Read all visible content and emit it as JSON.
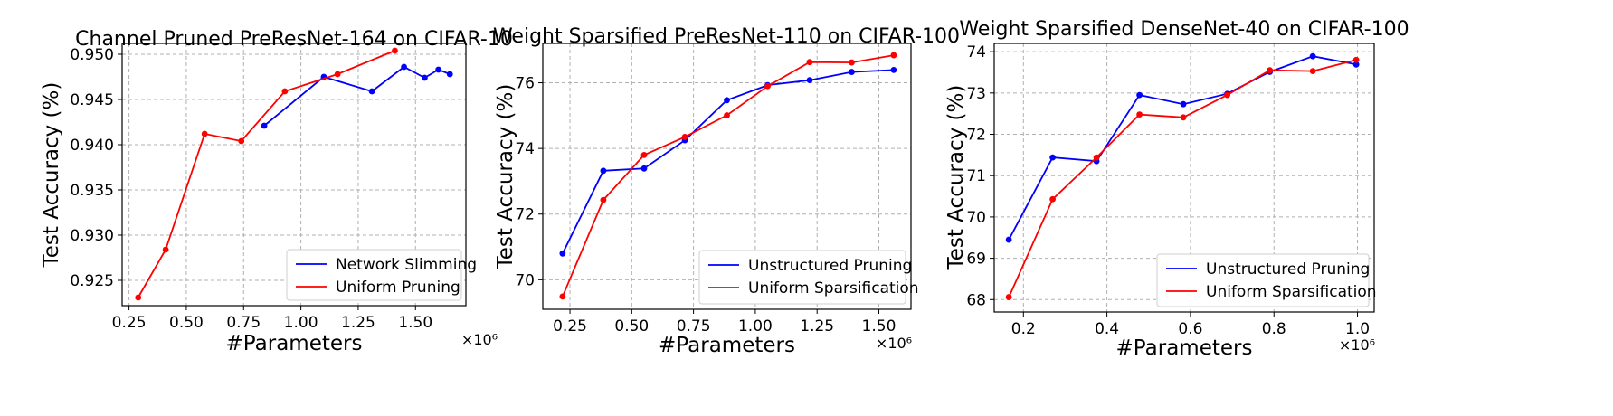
{
  "chart_data": [
    {
      "type": "line",
      "title": "Channel Pruned PreResNet-164 on CIFAR-10",
      "xlabel": "#Parameters",
      "ylabel": "Test Accuracy (%)",
      "x_multiplier": "×10⁶",
      "xlim": [
        0.22,
        1.72
      ],
      "ylim": [
        0.9222,
        0.9512
      ],
      "xticks": [
        0.25,
        0.5,
        0.75,
        1.0,
        1.25,
        1.5
      ],
      "xtick_labels": [
        "0.25",
        "0.50",
        "0.75",
        "1.00",
        "1.25",
        "1.50"
      ],
      "yticks": [
        0.925,
        0.93,
        0.935,
        0.94,
        0.945,
        0.95
      ],
      "ytick_labels": [
        "0.925",
        "0.930",
        "0.935",
        "0.940",
        "0.945",
        "0.950"
      ],
      "grid": true,
      "legend_position": "lower-right",
      "series": [
        {
          "name": "Network Slimming",
          "color": "#0000ff",
          "x": [
            0.84,
            1.1,
            1.31,
            1.45,
            1.54,
            1.6,
            1.65
          ],
          "y": [
            0.9421,
            0.9475,
            0.9459,
            0.9486,
            0.9474,
            0.9483,
            0.9478
          ]
        },
        {
          "name": "Uniform Pruning",
          "color": "#ff0000",
          "x": [
            0.29,
            0.41,
            0.58,
            0.74,
            0.93,
            1.16,
            1.41
          ],
          "y": [
            0.9231,
            0.9284,
            0.9412,
            0.9404,
            0.9459,
            0.9478,
            0.9504
          ]
        }
      ]
    },
    {
      "type": "line",
      "title": "Weight Sparsified PreResNet-110 on CIFAR-100",
      "xlabel": "#Parameters",
      "ylabel": "Test Accuracy (%)",
      "x_multiplier": "×10⁶",
      "xlim": [
        0.14,
        1.63
      ],
      "ylim": [
        69.1,
        77.2
      ],
      "xticks": [
        0.25,
        0.5,
        0.75,
        1.0,
        1.25,
        1.5
      ],
      "xtick_labels": [
        "0.25",
        "0.50",
        "0.75",
        "1.00",
        "1.25",
        "1.50"
      ],
      "yticks": [
        70,
        72,
        74,
        76
      ],
      "ytick_labels": [
        "70",
        "72",
        "74",
        "76"
      ],
      "grid": true,
      "legend_position": "lower-right",
      "series": [
        {
          "name": "Unstructured Pruning",
          "color": "#0000ff",
          "x": [
            0.22,
            0.385,
            0.55,
            0.715,
            0.885,
            1.05,
            1.22,
            1.39,
            1.56
          ],
          "y": [
            70.8,
            73.32,
            73.39,
            74.25,
            75.47,
            75.93,
            76.08,
            76.33,
            76.39
          ]
        },
        {
          "name": "Uniform Sparsification",
          "color": "#ff0000",
          "x": [
            0.22,
            0.385,
            0.55,
            0.715,
            0.885,
            1.05,
            1.22,
            1.39,
            1.56
          ],
          "y": [
            69.49,
            72.43,
            73.8,
            74.35,
            75.01,
            75.9,
            76.63,
            76.62,
            76.84
          ]
        }
      ]
    },
    {
      "type": "line",
      "title": "Weight Sparsified DenseNet-40 on CIFAR-100",
      "xlabel": "#Parameters",
      "ylabel": "Test Accuracy (%)",
      "x_multiplier": "×10⁶",
      "xlim": [
        0.13,
        1.04
      ],
      "ylim": [
        67.7,
        74.2
      ],
      "xticks": [
        0.2,
        0.4,
        0.6,
        0.8,
        1.0
      ],
      "xtick_labels": [
        "0.2",
        "0.4",
        "0.6",
        "0.8",
        "1.0"
      ],
      "yticks": [
        68,
        69,
        70,
        71,
        72,
        73,
        74
      ],
      "ytick_labels": [
        "68",
        "69",
        "70",
        "71",
        "72",
        "73",
        "74"
      ],
      "grid": true,
      "legend_position": "lower-right",
      "series": [
        {
          "name": "Unstructured Pruning",
          "color": "#0000ff",
          "x": [
            0.165,
            0.27,
            0.375,
            0.478,
            0.583,
            0.688,
            0.79,
            0.893,
            0.997
          ],
          "y": [
            69.45,
            71.44,
            71.35,
            72.95,
            72.73,
            72.98,
            73.51,
            73.89,
            73.69
          ]
        },
        {
          "name": "Uniform Sparsification",
          "color": "#ff0000",
          "x": [
            0.165,
            0.27,
            0.375,
            0.478,
            0.583,
            0.688,
            0.79,
            0.893,
            0.997
          ],
          "y": [
            68.06,
            70.43,
            71.44,
            72.48,
            72.41,
            72.95,
            73.55,
            73.53,
            73.8
          ]
        }
      ]
    }
  ]
}
